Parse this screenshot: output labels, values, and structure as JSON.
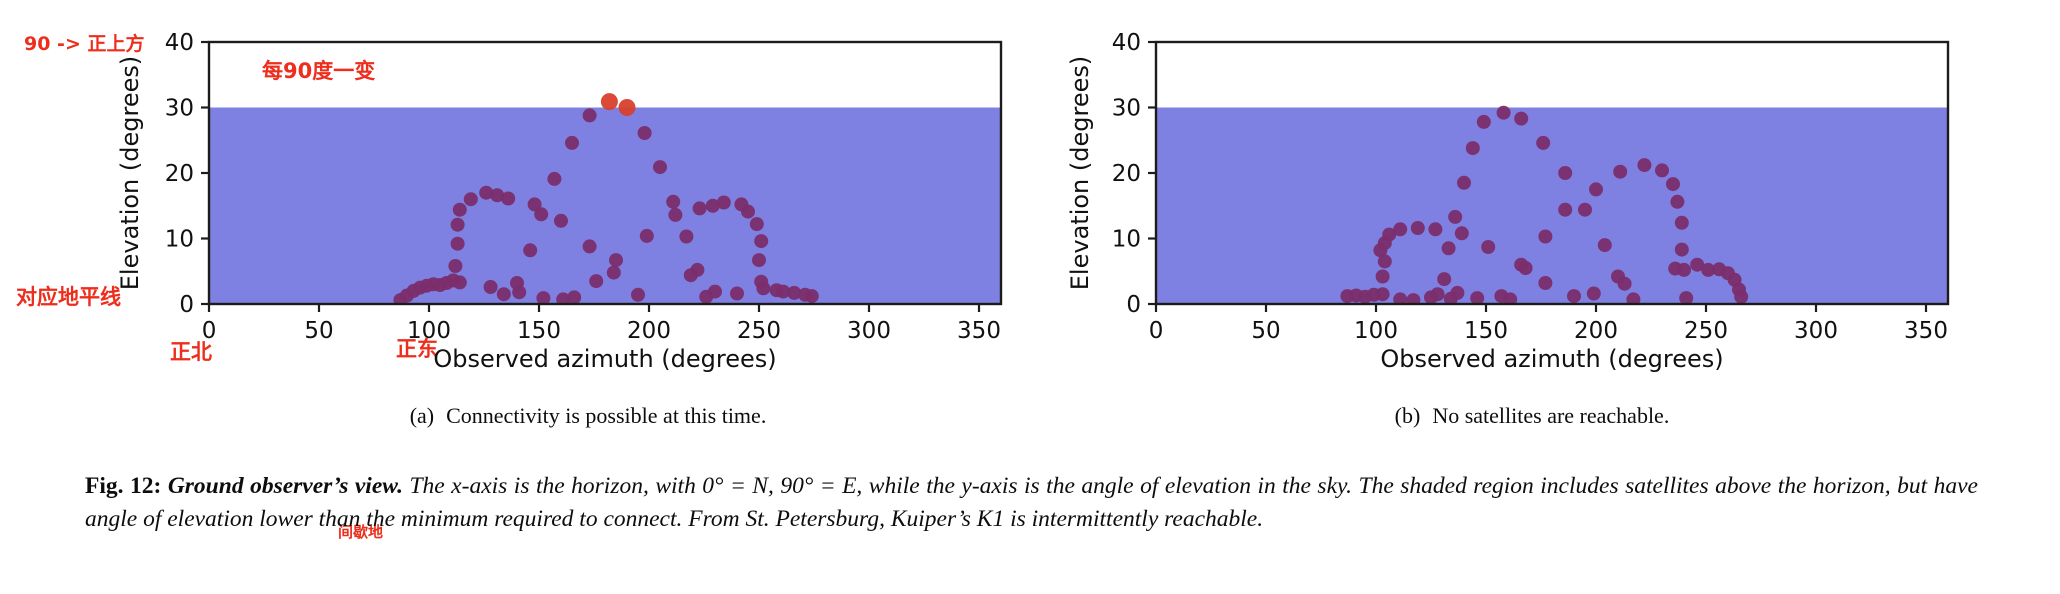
{
  "colors": {
    "shade": "#7e81e2",
    "dot": "#7b2d6b",
    "reachable_dot": "#d8402c",
    "annotation_red": "#ee2d1c",
    "axis": "#1c1c1c"
  },
  "axes": {
    "ylabel": "Elevation (degrees)",
    "xlabel": "Observed azimuth (degrees)"
  },
  "annotations": {
    "zenith_note": "90 -> 正上方",
    "per90_note": "每90度一变",
    "horizon_note": "对应地平线",
    "north_note": "正北",
    "east_note": "正东",
    "intermittent_note": "间歇地"
  },
  "captions": {
    "a_label": "(a)",
    "a_text": "Connectivity is possible at this time.",
    "b_label": "(b)",
    "b_text": "No satellites are reachable."
  },
  "figure_caption": {
    "label": "Fig. 12:",
    "title": " Ground observer’s view.",
    "body": " The x-axis is the horizon, with 0° = N, 90° = E, while the y-axis is the angle of elevation in the sky. The shaded region includes satellites above the horizon, but have angle of elevation lower than the minimum required to connect. From St. Petersburg, Kuiper’s K1 is intermittently reachable."
  },
  "chart_data": [
    {
      "type": "scatter",
      "panel": "a",
      "title": "(a) Connectivity is possible at this time.",
      "xlabel": "Observed azimuth (degrees)",
      "ylabel": "Elevation (degrees)",
      "xlim": [
        0,
        360
      ],
      "ylim": [
        0,
        40
      ],
      "xticks": [
        0,
        50,
        100,
        150,
        200,
        250,
        300,
        350
      ],
      "yticks": [
        0,
        10,
        20,
        30,
        40
      ],
      "grid": false,
      "legend": "none",
      "shaded_region": {
        "min": 0,
        "max": 30,
        "color": "#7e81e2",
        "meaning": "above horizon but below minimum elevation to connect"
      },
      "series": [
        {
          "name": "satellites below minimum elevation",
          "color": "#7b2d6b",
          "marker_radius": 7,
          "points": [
            [
              87,
              0.6
            ],
            [
              90,
              1.3
            ],
            [
              93,
              2.0
            ],
            [
              96,
              2.5
            ],
            [
              99,
              2.8
            ],
            [
              102,
              3.0
            ],
            [
              105,
              2.9
            ],
            [
              108,
              3.2
            ],
            [
              111,
              3.6
            ],
            [
              114,
              3.3
            ],
            [
              112,
              5.8
            ],
            [
              113,
              9.2
            ],
            [
              113,
              12.1
            ],
            [
              114,
              14.4
            ],
            [
              119,
              16.0
            ],
            [
              126,
              17.0
            ],
            [
              131,
              16.6
            ],
            [
              136,
              16.1
            ],
            [
              148,
              15.2
            ],
            [
              151,
              13.7
            ],
            [
              160,
              12.7
            ],
            [
              128,
              2.6
            ],
            [
              134,
              1.5
            ],
            [
              140,
              3.2
            ],
            [
              141,
              1.8
            ],
            [
              146,
              8.2
            ],
            [
              152,
              0.9
            ],
            [
              161,
              0.7
            ],
            [
              166,
              1.0
            ],
            [
              173,
              8.8
            ],
            [
              157,
              19.1
            ],
            [
              165,
              24.6
            ],
            [
              173,
              28.8
            ],
            [
              198,
              26.1
            ],
            [
              205,
              20.9
            ],
            [
              211,
              15.6
            ],
            [
              212,
              13.6
            ],
            [
              199,
              10.4
            ],
            [
              195,
              1.4
            ],
            [
              184,
              4.8
            ],
            [
              185,
              6.7
            ],
            [
              176,
              3.5
            ],
            [
              217,
              10.3
            ],
            [
              219,
              4.4
            ],
            [
              222,
              5.2
            ],
            [
              226,
              1.1
            ],
            [
              230,
              1.9
            ],
            [
              240,
              1.6
            ],
            [
              223,
              14.6
            ],
            [
              229,
              15.0
            ],
            [
              234,
              15.5
            ],
            [
              242,
              15.2
            ],
            [
              245,
              14.1
            ],
            [
              249,
              12.2
            ],
            [
              251,
              9.6
            ],
            [
              250,
              6.7
            ],
            [
              251,
              3.4
            ],
            [
              252,
              2.4
            ],
            [
              258,
              2.1
            ],
            [
              261,
              1.9
            ],
            [
              266,
              1.7
            ],
            [
              271,
              1.4
            ],
            [
              274,
              1.2
            ]
          ]
        },
        {
          "name": "reachable satellite (Kuiper K1)",
          "color": "#d8402c",
          "marker_radius": 8.5,
          "points": [
            [
              182,
              30.9
            ],
            [
              190,
              30.0
            ]
          ]
        }
      ]
    },
    {
      "type": "scatter",
      "panel": "b",
      "title": "(b) No satellites are reachable.",
      "xlabel": "Observed azimuth (degrees)",
      "ylabel": "Elevation (degrees)",
      "xlim": [
        0,
        360
      ],
      "ylim": [
        0,
        40
      ],
      "xticks": [
        0,
        50,
        100,
        150,
        200,
        250,
        300,
        350
      ],
      "yticks": [
        0,
        10,
        20,
        30,
        40
      ],
      "grid": false,
      "legend": "none",
      "shaded_region": {
        "min": 0,
        "max": 30,
        "color": "#7e81e2",
        "meaning": "above horizon but below minimum elevation to connect"
      },
      "series": [
        {
          "name": "satellites below minimum elevation",
          "color": "#7b2d6b",
          "marker_radius": 7,
          "points": [
            [
              87,
              1.2
            ],
            [
              91,
              1.3
            ],
            [
              95,
              1.1
            ],
            [
              99,
              1.4
            ],
            [
              103,
              1.5
            ],
            [
              103,
              4.2
            ],
            [
              104,
              6.5
            ],
            [
              102,
              8.2
            ],
            [
              104,
              9.3
            ],
            [
              106,
              10.6
            ],
            [
              111,
              11.4
            ],
            [
              119,
              11.6
            ],
            [
              127,
              11.4
            ],
            [
              133,
              8.5
            ],
            [
              136,
              13.3
            ],
            [
              139,
              10.8
            ],
            [
              140,
              18.5
            ],
            [
              144,
              23.8
            ],
            [
              149,
              27.8
            ],
            [
              158,
              29.2
            ],
            [
              166,
              28.3
            ],
            [
              176,
              24.6
            ],
            [
              151,
              8.7
            ],
            [
              157,
              1.2
            ],
            [
              166,
              6.0
            ],
            [
              168,
              5.5
            ],
            [
              177,
              10.3
            ],
            [
              177,
              3.2
            ],
            [
              186,
              14.4
            ],
            [
              195,
              14.4
            ],
            [
              186,
              20.0
            ],
            [
              200,
              17.5
            ],
            [
              211,
              20.2
            ],
            [
              222,
              21.2
            ],
            [
              230,
              20.4
            ],
            [
              235,
              18.3
            ],
            [
              237,
              15.6
            ],
            [
              239,
              12.4
            ],
            [
              204,
              9.0
            ],
            [
              199,
              1.6
            ],
            [
              210,
              4.2
            ],
            [
              213,
              3.1
            ],
            [
              217,
              0.7
            ],
            [
              239,
              8.3
            ],
            [
              236,
              5.4
            ],
            [
              240,
              5.2
            ],
            [
              246,
              6.0
            ],
            [
              251,
              5.2
            ],
            [
              256,
              5.3
            ],
            [
              260,
              4.7
            ],
            [
              263,
              3.7
            ],
            [
              265,
              2.2
            ],
            [
              266,
              1.1
            ],
            [
              241,
              0.9
            ],
            [
              111,
              0.7
            ],
            [
              117,
              0.6
            ],
            [
              125,
              1.0
            ],
            [
              128,
              1.5
            ],
            [
              134,
              0.8
            ],
            [
              137,
              1.7
            ],
            [
              131,
              3.8
            ],
            [
              146,
              0.9
            ],
            [
              161,
              0.7
            ],
            [
              190,
              1.2
            ]
          ]
        }
      ]
    }
  ]
}
